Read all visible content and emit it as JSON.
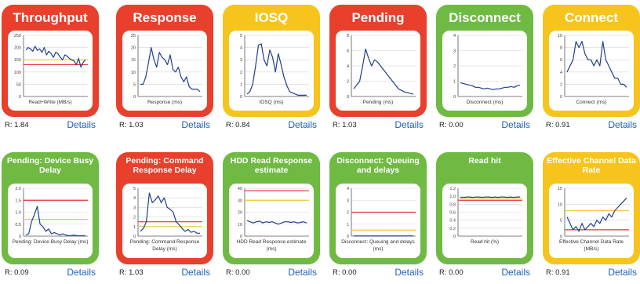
{
  "colors": {
    "red": "#e8402c",
    "yellow": "#f6c51d",
    "green": "#6fba43",
    "line": "#1f3f8c",
    "threshold_red": "#e53030",
    "threshold_yellow": "#f3c53a"
  },
  "details_label": "Details",
  "cards": [
    {
      "title": "Throughput",
      "status": "red",
      "r": "R: 1.84",
      "xlabel": "Read+Write (MB/s)",
      "ylim": [
        0,
        250
      ],
      "yticks": [
        "0",
        "50",
        "100",
        "150",
        "200",
        "250"
      ],
      "thresholds": [
        {
          "v": 150,
          "c": "yellow"
        },
        {
          "v": 130,
          "c": "red"
        }
      ],
      "series": [
        190,
        200,
        195,
        185,
        205,
        188,
        195,
        180,
        200,
        170,
        185,
        175,
        160,
        180,
        175,
        160,
        150,
        170,
        165,
        155,
        150,
        145,
        130,
        155,
        120,
        140,
        150
      ]
    },
    {
      "title": "Response",
      "status": "red",
      "r": "R: 1.03",
      "xlabel": "Response (ms)",
      "ylim": [
        0,
        25
      ],
      "yticks": [
        "0",
        "5",
        "10",
        "15",
        "20",
        "25"
      ],
      "thresholds": [],
      "series": [
        5,
        5,
        8,
        14,
        20,
        15,
        12,
        18,
        16,
        15,
        13,
        17,
        11,
        10,
        12,
        8,
        6,
        8,
        4,
        3,
        3,
        3,
        2
      ]
    },
    {
      "title": "IOSQ",
      "status": "yellow",
      "r": "R: 0.84",
      "xlabel": "IOSQ (ms)",
      "ylim": [
        0,
        5
      ],
      "yticks": [
        "0",
        "1",
        "2",
        "3",
        "4",
        "5"
      ],
      "thresholds": [],
      "series": [
        0.2,
        0.4,
        1.0,
        2.5,
        4.2,
        4.3,
        3.0,
        2.5,
        3.8,
        3.2,
        2.0,
        3.5,
        2.6,
        1.6,
        0.9,
        0.4,
        0.3,
        0.2,
        0.1,
        0.1,
        0.1,
        0.1
      ]
    },
    {
      "title": "Pending",
      "status": "red",
      "r": "R: 1.03",
      "xlabel": "Pending (ms)",
      "ylim": [
        0,
        8
      ],
      "yticks": [
        "0",
        "2",
        "4",
        "6",
        "8"
      ],
      "thresholds": [],
      "series": [
        1,
        1.5,
        2,
        4,
        6.2,
        5,
        4,
        4.8,
        4.5,
        4,
        3.5,
        3,
        2.5,
        2,
        1.5,
        1,
        0.8,
        0.6,
        0.5,
        0.4,
        0.3
      ]
    },
    {
      "title": "Disconnect",
      "status": "green",
      "r": "R: 0.00",
      "xlabel": "Disconnect (ms)",
      "ylim": [
        0,
        4
      ],
      "yticks": [
        "0",
        "1",
        "2",
        "3",
        "4"
      ],
      "thresholds": [],
      "series": [
        0.9,
        0.85,
        0.8,
        0.75,
        0.7,
        0.6,
        0.6,
        0.55,
        0.5,
        0.55,
        0.5,
        0.45,
        0.5,
        0.5,
        0.55,
        0.6,
        0.6,
        0.65,
        0.6,
        0.7,
        0.75
      ]
    },
    {
      "title": "Connect",
      "status": "yellow",
      "r": "R: 0.91",
      "xlabel": "Connect (ms)",
      "ylim": [
        0,
        10
      ],
      "yticks": [
        "0",
        "2",
        "4",
        "6",
        "8",
        "10"
      ],
      "thresholds": [],
      "series": [
        4,
        5,
        6,
        9,
        8,
        9,
        7,
        6,
        6,
        5,
        6,
        5,
        9,
        6,
        5,
        4,
        3,
        3,
        2,
        2,
        1.5
      ]
    },
    {
      "title": "Pending: Device Busy Delay",
      "status": "green",
      "r": "R: 0.09",
      "xlabel": "Pending: Device Busy Delay (ms)",
      "ylim": [
        0,
        2
      ],
      "yticks": [
        "0",
        "0.5",
        "1.0",
        "1.5",
        "2.0"
      ],
      "thresholds": [
        {
          "v": 1.5,
          "c": "red"
        },
        {
          "v": 0.7,
          "c": "yellow"
        }
      ],
      "series": [
        0.05,
        0.1,
        0.6,
        0.9,
        1.25,
        0.5,
        0.4,
        0.2,
        0.3,
        0.1,
        0.15,
        0.1,
        0.05,
        0.1,
        0.05,
        0.02,
        0.02,
        0.05,
        0.02,
        0.01,
        0.02,
        0.01
      ]
    },
    {
      "title": "Pending: Command Response Delay",
      "status": "red",
      "r": "R: 1.03",
      "xlabel": "Pending: Command Response Delay (ms)",
      "ylim": [
        0,
        5
      ],
      "yticks": [
        "0",
        "1",
        "2",
        "3",
        "4",
        "5"
      ],
      "thresholds": [
        {
          "v": 1.5,
          "c": "red"
        },
        {
          "v": 1,
          "c": "yellow"
        }
      ],
      "series": [
        0.5,
        0.8,
        1.5,
        4.5,
        3.5,
        3.8,
        4.2,
        3.5,
        4,
        3,
        2.8,
        2.5,
        1.5,
        1.2,
        0.8,
        0.5,
        0.7,
        0.4,
        0.5,
        0.3,
        0.3
      ]
    },
    {
      "title": "HDD Read Response estimate",
      "status": "green",
      "r": "R: 0.00",
      "xlabel": "HDD Read Response estimate (ms)",
      "ylim": [
        0,
        40
      ],
      "yticks": [
        "0",
        "10",
        "20",
        "30",
        "40"
      ],
      "thresholds": [
        {
          "v": 38,
          "c": "red"
        },
        {
          "v": 30,
          "c": "yellow"
        }
      ],
      "series": [
        13,
        12,
        11,
        12,
        12.5,
        11,
        12,
        11.5,
        12,
        11,
        10,
        11,
        12,
        12,
        11.5,
        12,
        11,
        11.5,
        12,
        11
      ]
    },
    {
      "title": "Disconnect: Queuing and delays",
      "status": "green",
      "r": "R: 0.00",
      "xlabel": "Disconnect: Queuing and delays (ms)",
      "ylim": [
        0,
        4
      ],
      "yticks": [
        "0",
        "1",
        "2",
        "3",
        "4"
      ],
      "thresholds": [
        {
          "v": 2,
          "c": "red"
        },
        {
          "v": 0.5,
          "c": "yellow"
        }
      ],
      "series": [
        0.02,
        0.02,
        0.02,
        0.02,
        0.02,
        0.02,
        0.02,
        0.02,
        0.02,
        0.02,
        0.02,
        0.02,
        0.02,
        0.02,
        0.02,
        0.02,
        0.02,
        0.02,
        0.02,
        0.02
      ]
    },
    {
      "title": "Read hit",
      "status": "green",
      "r": "R: 0.00",
      "xlabel": "Read hit (%)",
      "ylim": [
        0,
        1.2
      ],
      "yticks": [
        "0",
        "0.2",
        "0.4",
        "0.6",
        "0.8",
        "1.0",
        "1.2"
      ],
      "thresholds": [
        {
          "v": 0.95,
          "c": "yellow"
        },
        {
          "v": 0.9,
          "c": "red"
        }
      ],
      "series": [
        0.97,
        0.97,
        0.98,
        0.98,
        0.97,
        0.98,
        0.98,
        0.97,
        0.98,
        0.98,
        0.97,
        0.98,
        0.97,
        0.98,
        0.98,
        0.97,
        0.98,
        0.97,
        0.98,
        0.98
      ]
    },
    {
      "title": "Effective Channel Data Rate",
      "status": "yellow",
      "r": "R: 0.91",
      "xlabel": "Effective Channel Data Rate (MB/s)",
      "ylim": [
        0,
        15
      ],
      "yticks": [
        "0",
        "5",
        "10",
        "15"
      ],
      "thresholds": [
        {
          "v": 8,
          "c": "yellow"
        },
        {
          "v": 2,
          "c": "red"
        }
      ],
      "series": [
        6,
        4,
        2,
        3,
        1.5,
        4,
        2,
        3,
        4,
        3,
        5,
        4,
        6,
        5,
        7,
        6,
        8,
        9,
        10,
        11,
        12
      ]
    }
  ]
}
